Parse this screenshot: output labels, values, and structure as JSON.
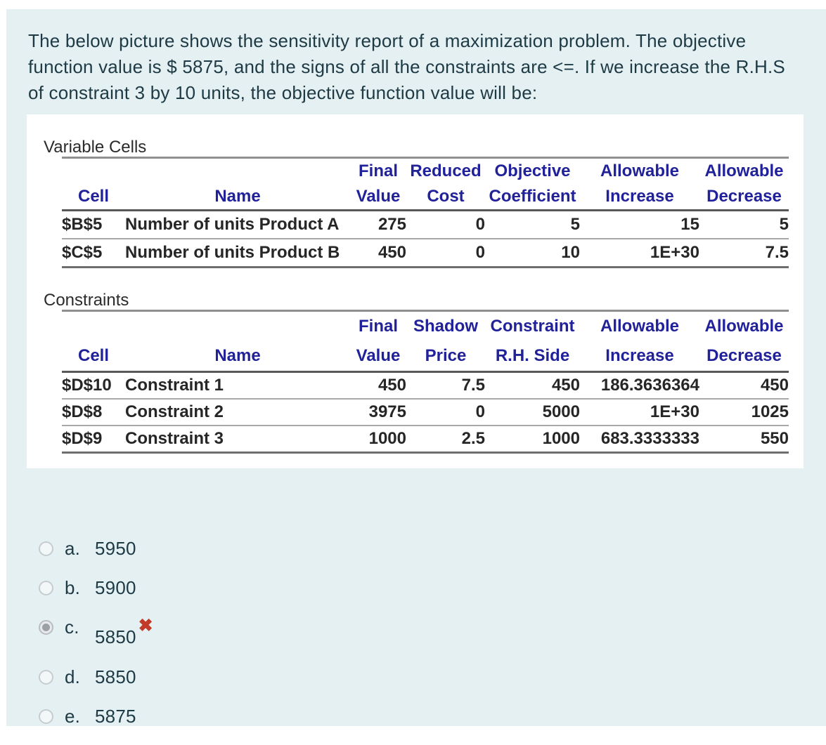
{
  "question": {
    "lines": [
      "The below picture shows the sensitivity report of a maximization problem. The objective",
      "function value is $ 5875, and the signs of all the constraints are <=.  If we increase the R.H.S",
      "of constraint 3 by 10 units, the objective function value will be:"
    ]
  },
  "report": {
    "variable_cells": {
      "title": "Variable Cells",
      "headers_top": [
        "Final",
        "Reduced",
        "Objective",
        "Allowable",
        "Allowable"
      ],
      "headers_bottom": [
        "Cell",
        "Name",
        "Value",
        "Cost",
        "Coefficient",
        "Increase",
        "Decrease"
      ],
      "rows": [
        [
          "$B$5",
          "Number of units Product A",
          "275",
          "0",
          "5",
          "15",
          "5"
        ],
        [
          "$C$5",
          "Number of units Product B",
          "450",
          "0",
          "10",
          "1E+30",
          "7.5"
        ]
      ]
    },
    "constraints": {
      "title": "Constraints",
      "headers_top": [
        "Final",
        "Shadow",
        "Constraint",
        "Allowable",
        "Allowable"
      ],
      "headers_bottom": [
        "Cell",
        "Name",
        "Value",
        "Price",
        "R.H. Side",
        "Increase",
        "Decrease"
      ],
      "rows": [
        [
          "$D$10",
          "Constraint 1",
          "450",
          "7.5",
          "450",
          "186.3636364",
          "450"
        ],
        [
          "$D$8",
          "Constraint 2",
          "3975",
          "0",
          "5000",
          "1E+30",
          "1025"
        ],
        [
          "$D$9",
          "Constraint 3",
          "1000",
          "2.5",
          "1000",
          "683.3333333",
          "550"
        ]
      ]
    }
  },
  "options": [
    {
      "letter": "a.",
      "value": "5950",
      "selected": false,
      "incorrect": false
    },
    {
      "letter": "b.",
      "value": "5900",
      "selected": false,
      "incorrect": false
    },
    {
      "letter": "c.",
      "value": "5850",
      "selected": true,
      "incorrect": true
    },
    {
      "letter": "d.",
      "value": "5850",
      "selected": false,
      "incorrect": false
    },
    {
      "letter": "e.",
      "value": "5875",
      "selected": false,
      "incorrect": false
    }
  ],
  "icons": {
    "incorrect_cross": "✖"
  },
  "colors": {
    "page_bg": "#ffffff",
    "content_bg": "#e5f0f2",
    "question_text": "#1d3a45",
    "table_header_navy": "#21219a",
    "table_data_text": "#262626",
    "incorrect_red": "#c23a28"
  }
}
